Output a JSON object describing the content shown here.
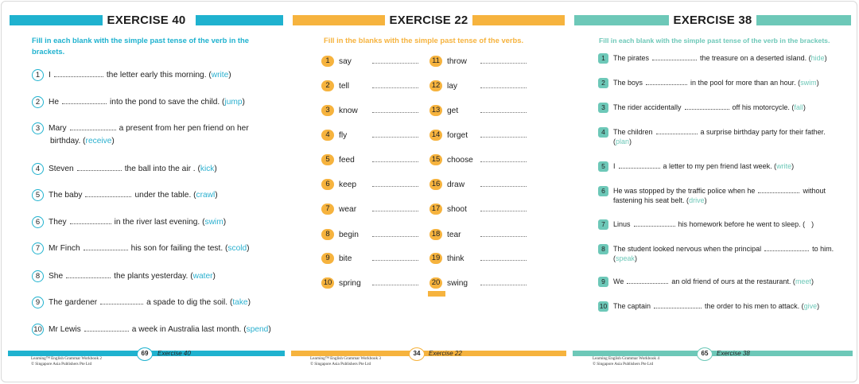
{
  "colors": {
    "blue": "#1fb2cf",
    "orange": "#f6b33e",
    "teal": "#6dc8b8"
  },
  "ex40": {
    "title": "EXERCISE 40",
    "instruction_l1": "Fill in each blank with the simple past tense of the verb in the",
    "instruction_l2": "brackets.",
    "items": [
      {
        "n": "1",
        "pre": "I",
        "post": "the letter early this morning. (",
        "hint": "write",
        "end": ")"
      },
      {
        "n": "2",
        "pre": "He",
        "post": "into the pond to save the child. (",
        "hint": "jump",
        "end": ")"
      },
      {
        "n": "3",
        "pre": "Mary",
        "post": "a present from her pen friend on her",
        "line2a": "birthday. (",
        "hint": "receive",
        "end": ")"
      },
      {
        "n": "4",
        "pre": "Steven",
        "post": "the ball into the air . (",
        "hint": "kick",
        "end": ")"
      },
      {
        "n": "5",
        "pre": "The baby",
        "post": "under the table. (",
        "hint": "crawl",
        "end": ")"
      },
      {
        "n": "6",
        "pre": "They",
        "post": "in the river last evening. (",
        "hint": "swim",
        "end": ")"
      },
      {
        "n": "7",
        "pre": "Mr Finch",
        "post": "his son for failing the test. (",
        "hint": "scold",
        "end": ")"
      },
      {
        "n": "8",
        "pre": "She",
        "post": "the plants yesterday. (",
        "hint": "water",
        "end": ")"
      },
      {
        "n": "9",
        "pre": "The gardener",
        "post": "a spade to dig the soil. (",
        "hint": "take",
        "end": ")"
      },
      {
        "n": "10",
        "pre": "Mr Lewis",
        "post": "a week in Australia last month. (",
        "hint": "spend",
        "end": ")"
      }
    ],
    "footer_page": "69",
    "footer_label": "Exercise 40",
    "credit_l1": "Learning™ English Grammar Workbook 2",
    "credit_l2": "© Singapore Asia Publishers Pte Ltd"
  },
  "ex22": {
    "title": "EXERCISE 22",
    "instruction": "Fill in the blanks with the simple past tense of the verbs.",
    "left": [
      {
        "n": "1",
        "w": "say"
      },
      {
        "n": "2",
        "w": "tell"
      },
      {
        "n": "3",
        "w": "know"
      },
      {
        "n": "4",
        "w": "fly"
      },
      {
        "n": "5",
        "w": "feed"
      },
      {
        "n": "6",
        "w": "keep"
      },
      {
        "n": "7",
        "w": "wear"
      },
      {
        "n": "8",
        "w": "begin"
      },
      {
        "n": "9",
        "w": "bite"
      },
      {
        "n": "10",
        "w": "spring"
      }
    ],
    "right": [
      {
        "n": "11",
        "w": "throw"
      },
      {
        "n": "12",
        "w": "lay"
      },
      {
        "n": "13",
        "w": "get"
      },
      {
        "n": "14",
        "w": "forget"
      },
      {
        "n": "15",
        "w": "choose"
      },
      {
        "n": "16",
        "w": "draw"
      },
      {
        "n": "17",
        "w": "shoot"
      },
      {
        "n": "18",
        "w": "tear"
      },
      {
        "n": "19",
        "w": "think"
      },
      {
        "n": "20",
        "w": "swing"
      }
    ],
    "footer_page": "34",
    "footer_label": "Exercise 22",
    "credit_l1": "Learning™ English Grammar Workbook 3",
    "credit_l2": "© Singapore Asia Publishers Pte Ltd"
  },
  "ex38": {
    "title": "EXERCISE 38",
    "instruction": "Fill in each blank with the simple past tense of the verb in the brackets.",
    "items": [
      {
        "n": "1",
        "pre": "The pirates",
        "post": "the treasure on a deserted island. (",
        "hint": "hide",
        "end": ")"
      },
      {
        "n": "2",
        "pre": "The boys",
        "post": "in the pool for more than an hour. (",
        "hint": "swim",
        "end": ")"
      },
      {
        "n": "3",
        "pre": "The rider accidentally",
        "post": "off his motorcycle. (",
        "hint": "fall",
        "end": ")"
      },
      {
        "n": "4",
        "pre": "The children",
        "post": "a surprise birthday party for their father.",
        "line2a": "(",
        "hint": "plan",
        "end": ")"
      },
      {
        "n": "5",
        "pre": "I",
        "post": "a letter to my pen friend last week. (",
        "hint": "write",
        "end": ")"
      },
      {
        "n": "6",
        "pre": "He was stopped by the traffic police when he",
        "post": "without",
        "line2a": "fastening his seat belt. (",
        "hint": "drive",
        "end": ")"
      },
      {
        "n": "7",
        "pre": "Linus",
        "post": "his homework before he went to sleep. (",
        "hint": "",
        "end": ")"
      },
      {
        "n": "8",
        "pre": "The student looked nervous when the principal",
        "post": "to him.",
        "line2a": "(",
        "hint": "speak",
        "end": ")"
      },
      {
        "n": "9",
        "pre": "We",
        "post": "an old friend of ours at the restaurant. (",
        "hint": "meet",
        "end": ")"
      },
      {
        "n": "10",
        "pre": "The captain",
        "post": "the order to his men to attack. (",
        "hint": "give",
        "end": ")"
      }
    ],
    "footer_page": "65",
    "footer_label": "Exercise 38",
    "credit_l1": "Learning English Grammar Workbook 4",
    "credit_l2": "© Singapore Asia Publishers Pte Ltd"
  }
}
